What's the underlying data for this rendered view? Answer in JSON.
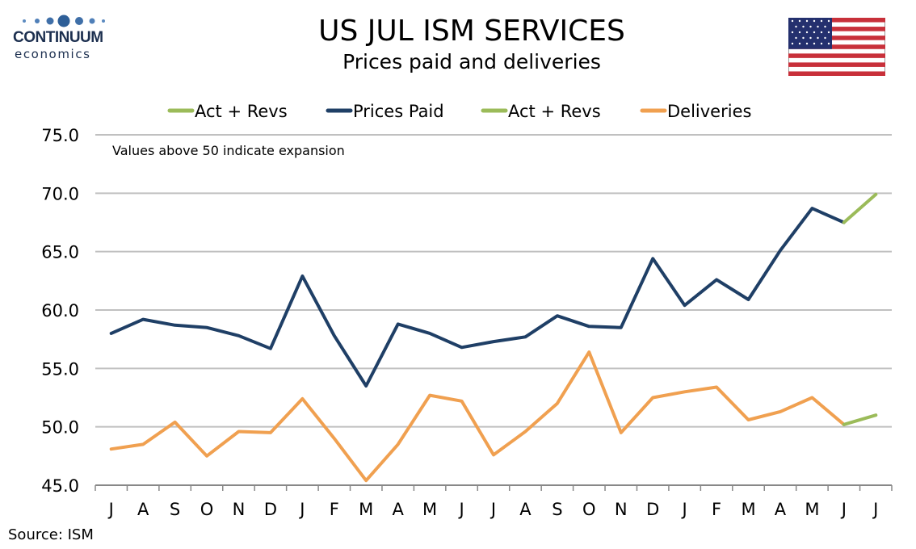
{
  "branding": {
    "word": "CONTINUUM",
    "sub": "economics"
  },
  "header": {
    "title": "US JUL ISM SERVICES",
    "subtitle": "Prices paid and deliveries"
  },
  "flag_icon": "us-flag-icon",
  "source": "Source: ISM",
  "colors": {
    "prices": "#1f3f66",
    "deliveries": "#f0a050",
    "revisions": "#9bbb59",
    "grid": "#c0c0c0"
  },
  "chart_data": {
    "type": "line",
    "annotation": "Values above 50 indicate expansion",
    "categories": [
      "J",
      "A",
      "S",
      "O",
      "N",
      "D",
      "J",
      "F",
      "M",
      "A",
      "M",
      "J",
      "J",
      "A",
      "S",
      "O",
      "N",
      "D",
      "J",
      "F",
      "M",
      "A",
      "M",
      "J",
      "J"
    ],
    "ylim": [
      45,
      75
    ],
    "yticks": [
      "45.0",
      "50.0",
      "55.0",
      "60.0",
      "65.0",
      "70.0",
      "75.0"
    ],
    "grid": true,
    "legend_position": "top",
    "legend": [
      "Act + Revs",
      "Prices Paid",
      "Act + Revs",
      "Deliveries"
    ],
    "series": [
      {
        "name": "Prices Paid",
        "color": "#1f3f66",
        "values": [
          58.0,
          59.2,
          58.7,
          58.5,
          57.8,
          56.7,
          62.9,
          57.8,
          53.5,
          58.8,
          58.0,
          56.8,
          57.3,
          57.7,
          59.5,
          58.6,
          58.5,
          64.4,
          60.4,
          62.6,
          60.9,
          65.1,
          68.7,
          67.5,
          null
        ]
      },
      {
        "name": "Act + Revs",
        "color": "#9bbb59",
        "values": [
          null,
          null,
          null,
          null,
          null,
          null,
          null,
          null,
          null,
          null,
          null,
          null,
          null,
          null,
          null,
          null,
          null,
          null,
          null,
          null,
          null,
          null,
          null,
          67.5,
          69.9
        ]
      },
      {
        "name": "Deliveries",
        "color": "#f0a050",
        "values": [
          48.1,
          48.5,
          50.4,
          47.5,
          49.6,
          49.5,
          52.4,
          49.0,
          45.4,
          48.5,
          52.7,
          52.2,
          47.6,
          49.6,
          52.0,
          56.4,
          49.5,
          52.5,
          53.0,
          53.4,
          50.6,
          51.3,
          52.5,
          50.2,
          null
        ]
      },
      {
        "name": "Act + Revs",
        "color": "#9bbb59",
        "values": [
          null,
          null,
          null,
          null,
          null,
          null,
          null,
          null,
          null,
          null,
          null,
          null,
          null,
          null,
          null,
          null,
          null,
          null,
          null,
          null,
          null,
          null,
          null,
          50.2,
          51.0
        ]
      }
    ]
  }
}
